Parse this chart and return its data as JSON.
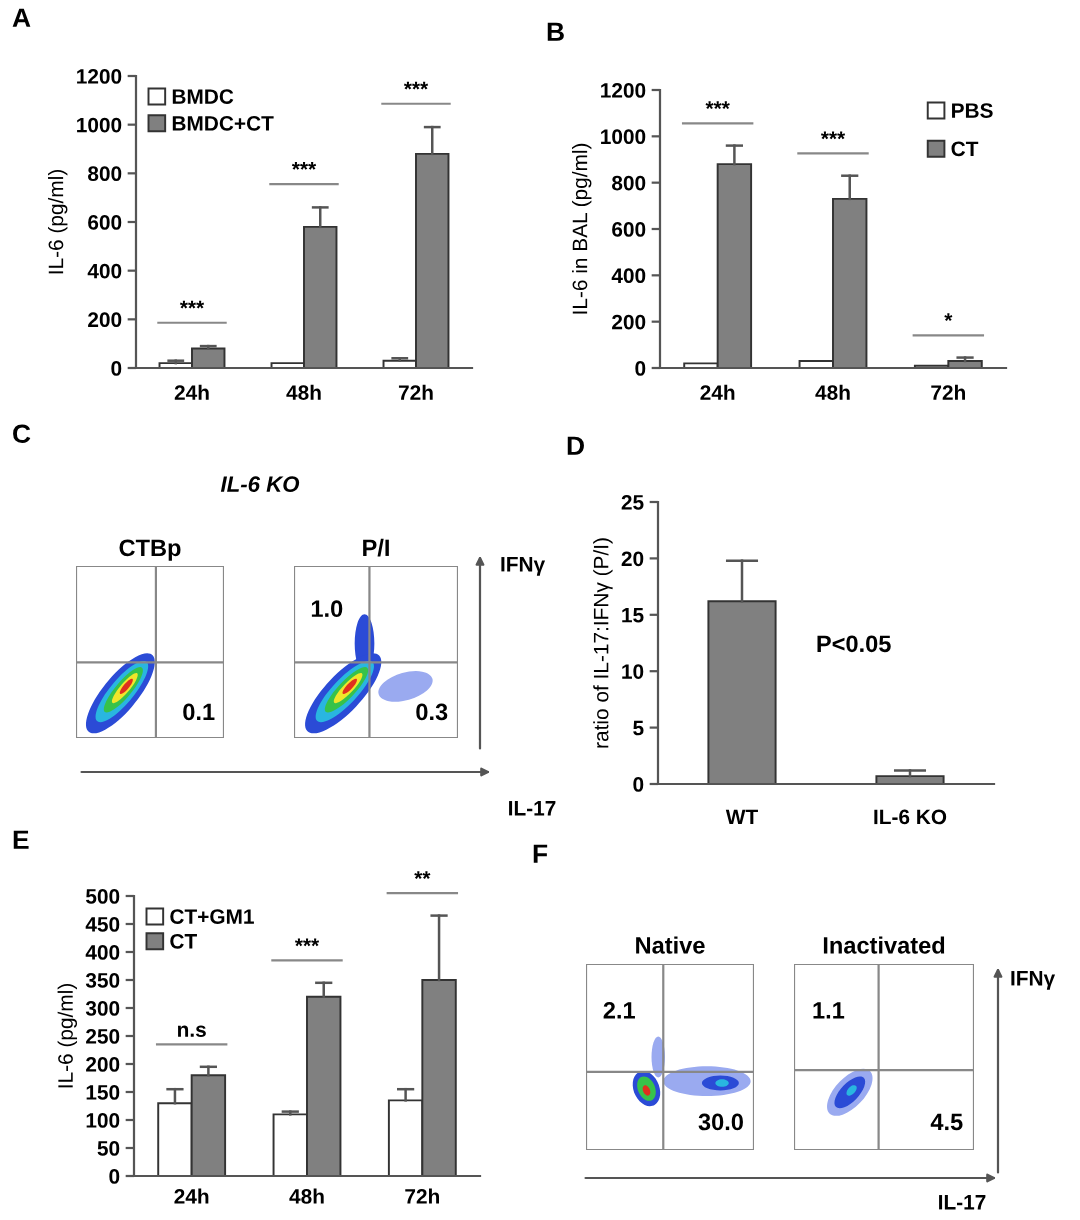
{
  "chart_data": [
    {
      "type": "bar",
      "title": "A",
      "ylabel": "IL-6 (pg/ml)",
      "categories": [
        "24h",
        "48h",
        "72h"
      ],
      "series": [
        {
          "name": "BMDC",
          "color": "#ffffff",
          "values": [
            20,
            20,
            30
          ],
          "errors": [
            [
              20,
              30
            ],
            null,
            [
              30,
              40
            ]
          ]
        },
        {
          "name": "BMDC+CT",
          "color": "#808080",
          "values": [
            80,
            580,
            880
          ],
          "errors": [
            [
              80,
              90
            ],
            [
              580,
              660
            ],
            [
              880,
              990
            ]
          ]
        }
      ],
      "ylim": [
        0,
        1200
      ],
      "yticks": [
        0,
        200,
        400,
        600,
        800,
        1000,
        1200
      ],
      "legend": "top left",
      "annotations": [
        "***",
        "***",
        "***"
      ]
    },
    {
      "type": "bar",
      "title": "B",
      "ylabel": "IL-6 in BAL (pg/ml)",
      "categories": [
        "24h",
        "48h",
        "72h"
      ],
      "series": [
        {
          "name": "PBS",
          "color": "#ffffff",
          "values": [
            20,
            30,
            10
          ]
        },
        {
          "name": "CT",
          "color": "#808080",
          "values": [
            880,
            730,
            30
          ],
          "errors": [
            [
              880,
              960
            ],
            [
              730,
              830
            ],
            [
              30,
              45
            ]
          ]
        }
      ],
      "ylim": [
        0,
        1200
      ],
      "yticks": [
        0,
        200,
        400,
        600,
        800,
        1000,
        1200
      ],
      "legend": "top right",
      "annotations": [
        "***",
        "***",
        "*"
      ]
    },
    {
      "type": "other",
      "title": "C",
      "subtitle": "IL-6 KO",
      "annotations": [
        "CTBp",
        "0.1"
      ]
    },
    {
      "type": "other",
      "xlabel": "IL-17",
      "ylabel": "IFNγ",
      "annotations": [
        "P/I",
        "1.0",
        "0.3"
      ]
    },
    {
      "type": "bar",
      "title": "D",
      "ylabel": "ratio of IL-17:IFNγ (P/I)",
      "categories": [
        "WT",
        "IL-6 KO"
      ],
      "series": [
        {
          "color": "#808080",
          "values": [
            16.2,
            0.7
          ],
          "errors": [
            [
              16.2,
              19.8
            ],
            [
              0.7,
              1.2
            ]
          ]
        }
      ],
      "ylim": [
        0,
        25
      ],
      "yticks": [
        0,
        5,
        10,
        15,
        20,
        25
      ],
      "annotations": [
        "P<0.05"
      ]
    },
    {
      "type": "bar",
      "title": "E",
      "ylabel": "IL-6 (pg/ml)",
      "categories": [
        "24h",
        "48h",
        "72h"
      ],
      "series": [
        {
          "name": "CT+GM1",
          "color": "#ffffff",
          "values": [
            130,
            110,
            135
          ],
          "errors": [
            [
              130,
              155
            ],
            [
              110,
              115
            ],
            [
              135,
              155
            ]
          ]
        },
        {
          "name": "CT",
          "color": "#808080",
          "values": [
            180,
            320,
            350
          ],
          "errors": [
            [
              180,
              195
            ],
            [
              320,
              345
            ],
            [
              350,
              465
            ]
          ]
        }
      ],
      "ylim": [
        0,
        500
      ],
      "yticks": [
        0,
        50,
        100,
        150,
        200,
        250,
        300,
        350,
        400,
        450,
        500
      ],
      "legend": "top left",
      "annotations": [
        "n.s",
        "***",
        "**"
      ]
    },
    {
      "type": "other",
      "title": "F",
      "annotations": [
        "Native",
        "2.1",
        "30.0"
      ]
    },
    {
      "type": "other",
      "xlabel": "IL-17",
      "ylabel": "IFNγ",
      "annotations": [
        "Inactivated",
        "1.1",
        "4.5"
      ]
    }
  ]
}
